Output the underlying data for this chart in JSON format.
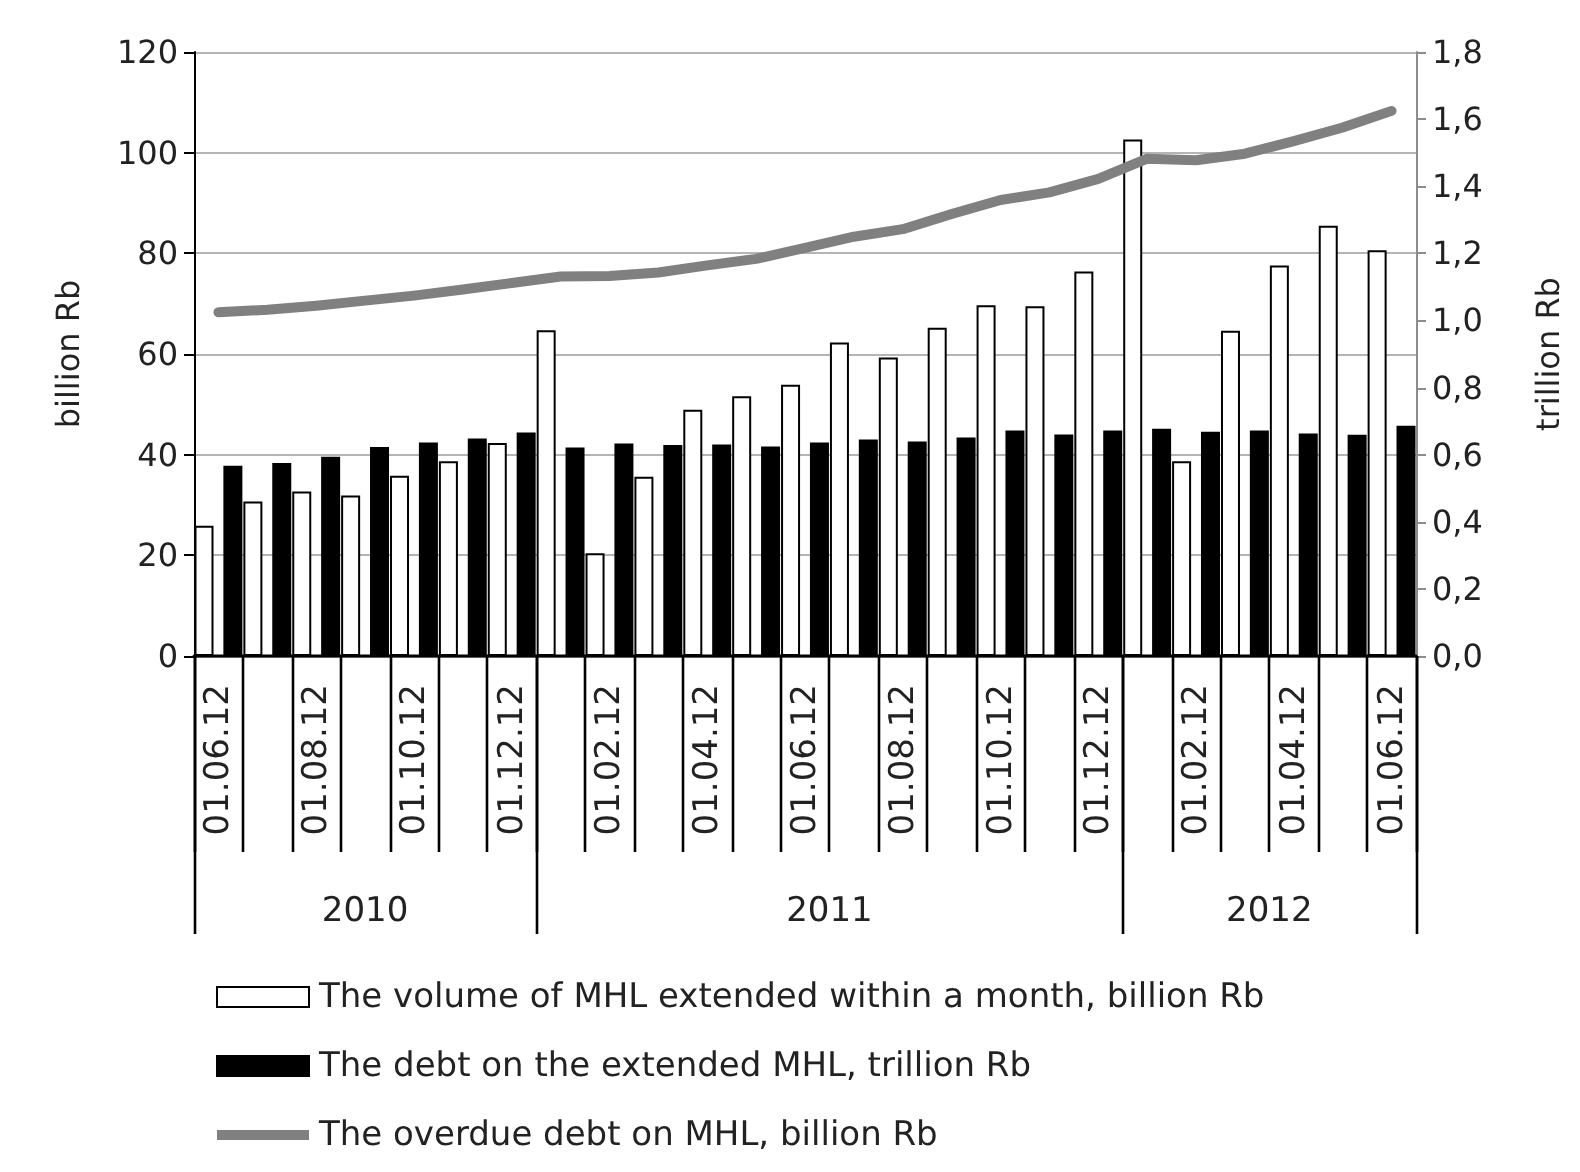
{
  "chart_data": {
    "type": "bar",
    "categories": [
      "01.06.12",
      null,
      "01.08.12",
      null,
      "01.10.12",
      null,
      "01.12.12",
      null,
      "01.02.12",
      null,
      "01.04.12",
      null,
      "01.06.12",
      null,
      "01.08.12",
      null,
      "01.10.12",
      null,
      "01.12.12",
      null,
      "01.02.12",
      null,
      "01.04.12",
      null,
      "01.06.12"
    ],
    "series": [
      {
        "name": "The volume of MHL extended within a month, billion Rb",
        "color": "#ffffff",
        "values": [
          25.9,
          30.7,
          32.7,
          31.9,
          35.8,
          38.7,
          42.3,
          64.7,
          20.4,
          35.6,
          48.9,
          51.6,
          53.9,
          62.3,
          59.3,
          65.2,
          69.7,
          69.5,
          76.4,
          102.6,
          38.7,
          64.6,
          77.6,
          85.5,
          80.6
        ]
      },
      {
        "name": "The debt on the extended MHL, trillion Rb",
        "axis": "y2",
        "color": "#000000",
        "values": [
          0.567,
          0.575,
          0.594,
          0.623,
          0.636,
          0.648,
          0.666,
          0.621,
          0.633,
          0.629,
          0.63,
          0.624,
          0.636,
          0.645,
          0.639,
          0.651,
          0.672,
          0.66,
          0.672,
          0.677,
          0.668,
          0.672,
          0.663,
          0.659,
          0.686
        ]
      },
      {
        "name": "The overdue debt on MHL, billion Rb",
        "type": "line",
        "color": "#808080",
        "values": [
          68.3,
          68.8,
          69.6,
          70.6,
          71.6,
          72.8,
          74.1,
          75.4,
          75.5,
          76.2,
          77.6,
          78.9,
          81.1,
          83.3,
          84.8,
          87.8,
          90.6,
          92.1,
          94.8,
          98.8,
          98.5,
          99.8,
          102.3,
          105,
          108.3
        ]
      }
    ],
    "ylabel": "billion Rb",
    "y2label": "trillion Rb",
    "ylim": [
      0,
      120
    ],
    "yticks": [
      0,
      20,
      40,
      60,
      80,
      100,
      120
    ],
    "y2lim": [
      0,
      1.8
    ],
    "y2ticks": [
      {
        "value": 0,
        "label": "0,0"
      },
      {
        "value": 0.2,
        "label": "0,2"
      },
      {
        "value": 0.4,
        "label": "0,4"
      },
      {
        "value": 0.6,
        "label": "0,6"
      },
      {
        "value": 0.8,
        "label": "0,8"
      },
      {
        "value": 1,
        "label": "1,0"
      },
      {
        "value": 1.2,
        "label": "1,2"
      },
      {
        "value": 1.4,
        "label": "1,4"
      },
      {
        "value": 1.6,
        "label": "1,6"
      },
      {
        "value": 1.8,
        "label": "1,8"
      }
    ],
    "annotations": [
      "2010",
      "2011",
      "2012"
    ],
    "grid": "y",
    "legend": "bottom"
  }
}
